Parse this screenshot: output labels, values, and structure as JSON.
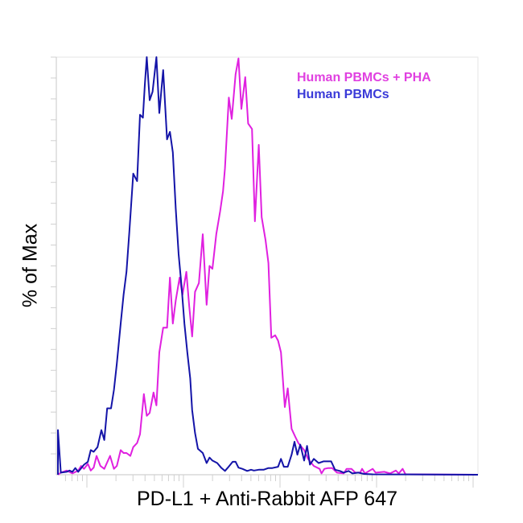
{
  "chart_data": {
    "type": "line",
    "title": "",
    "xlabel": "PD-L1 + Anti-Rabbit AFP 647",
    "ylabel": "% of Max",
    "xscale": "log",
    "xlim": [
      0.7,
      5.05
    ],
    "ylim": [
      0,
      100
    ],
    "grid": false,
    "legend_position": "top-right",
    "series": [
      {
        "name": "Human PBMCs + PHA",
        "color": "#e020e0",
        "legend_color": "#e040e0",
        "x": [
          0.7,
          0.73,
          0.79,
          0.85,
          0.91,
          0.94,
          0.97,
          1.01,
          1.04,
          1.07,
          1.1,
          1.14,
          1.18,
          1.24,
          1.28,
          1.31,
          1.35,
          1.38,
          1.41,
          1.45,
          1.48,
          1.52,
          1.55,
          1.59,
          1.62,
          1.65,
          1.69,
          1.72,
          1.75,
          1.79,
          1.83,
          1.86,
          1.89,
          1.92,
          1.96,
          1.99,
          2.03,
          2.06,
          2.09,
          2.12,
          2.16,
          2.2,
          2.24,
          2.27,
          2.3,
          2.34,
          2.38,
          2.41,
          2.43,
          2.47,
          2.5,
          2.54,
          2.57,
          2.6,
          2.64,
          2.67,
          2.71,
          2.74,
          2.78,
          2.81,
          2.85,
          2.88,
          2.91,
          2.95,
          2.98,
          3.01,
          3.05,
          3.08,
          3.12,
          3.16,
          3.19,
          3.25,
          3.29,
          3.35,
          3.41,
          3.43,
          3.46,
          3.5,
          3.54,
          3.59,
          3.66,
          3.69,
          3.74,
          3.78,
          3.83,
          3.85,
          3.88,
          3.96,
          3.99,
          4.08,
          4.14,
          4.2,
          4.23,
          4.27,
          4.3,
          5.05
        ],
        "y": [
          0,
          0.5,
          1.0,
          0.3,
          1.0,
          2.1,
          1.4,
          2.6,
          1.0,
          1.7,
          4.5,
          2.1,
          1.4,
          4.5,
          1.4,
          2.1,
          5.9,
          5.2,
          5.2,
          4.5,
          6.6,
          7.6,
          9.7,
          19.3,
          14.1,
          14.8,
          19.7,
          16.6,
          29.3,
          35.2,
          35.2,
          47.2,
          36.2,
          41.7,
          47.2,
          43.1,
          48.6,
          40.3,
          33.1,
          43.8,
          45.9,
          57.6,
          40.7,
          50.0,
          49.3,
          57.6,
          63.1,
          67.9,
          73.4,
          90.3,
          85.2,
          95.9,
          99.7,
          87.6,
          95.2,
          84.1,
          82.8,
          60.7,
          79.0,
          61.7,
          56.2,
          50.7,
          32.8,
          33.4,
          32.1,
          29.3,
          16.2,
          20.7,
          11.0,
          9.0,
          7.6,
          5.9,
          3.8,
          2.1,
          1.4,
          0.3,
          1.4,
          1.6,
          1.6,
          0.5,
          0.3,
          1.4,
          1.4,
          0.5,
          0.5,
          1.4,
          0.3,
          1.4,
          0.5,
          0.7,
          0.3,
          1.0,
          0.3,
          1.4,
          0.1,
          0
        ]
      },
      {
        "name": "Human PBMCs",
        "color": "#1414a8",
        "legend_color": "#3a3ad8",
        "x": [
          0.7,
          0.7,
          0.73,
          0.79,
          0.82,
          0.85,
          0.88,
          0.91,
          0.97,
          1.01,
          1.04,
          1.07,
          1.11,
          1.15,
          1.18,
          1.21,
          1.25,
          1.28,
          1.31,
          1.35,
          1.38,
          1.41,
          1.44,
          1.48,
          1.52,
          1.55,
          1.58,
          1.6,
          1.62,
          1.65,
          1.68,
          1.72,
          1.75,
          1.79,
          1.83,
          1.86,
          1.89,
          1.92,
          1.95,
          1.98,
          2.01,
          2.04,
          2.07,
          2.09,
          2.12,
          2.15,
          2.2,
          2.24,
          2.27,
          2.3,
          2.35,
          2.39,
          2.43,
          2.46,
          2.51,
          2.54,
          2.57,
          2.61,
          2.66,
          2.7,
          2.73,
          2.78,
          2.83,
          2.88,
          2.92,
          2.98,
          3.01,
          3.04,
          3.08,
          3.12,
          3.15,
          3.18,
          3.21,
          3.25,
          3.28,
          3.31,
          3.35,
          3.4,
          3.45,
          3.53,
          3.57,
          3.62,
          3.66,
          3.71,
          3.75,
          3.81,
          3.87,
          3.96,
          5.05
        ],
        "y": [
          0,
          10.7,
          0.5,
          0.7,
          1.0,
          0.7,
          1.6,
          0.7,
          2.4,
          3.1,
          5.9,
          5.5,
          6.6,
          10.7,
          8.3,
          15.9,
          15.9,
          20.3,
          26.6,
          36.2,
          43.1,
          48.6,
          58.3,
          72.1,
          70.3,
          86.2,
          85.5,
          93.4,
          100,
          89.7,
          91.7,
          100,
          86.6,
          96.9,
          80.3,
          82.1,
          77.2,
          63.8,
          52.8,
          45.2,
          36.2,
          29.3,
          23.1,
          15.5,
          10.0,
          6.2,
          5.2,
          2.8,
          4.1,
          3.4,
          2.8,
          1.7,
          0.9,
          1.7,
          3.1,
          3.1,
          1.7,
          1.4,
          0.9,
          1.2,
          1.0,
          1.2,
          1.2,
          1.6,
          1.6,
          1.9,
          3.8,
          1.9,
          1.9,
          4.8,
          7.9,
          4.8,
          7.2,
          3.4,
          6.9,
          2.4,
          3.8,
          2.8,
          3.2,
          3.2,
          1.2,
          0.9,
          0.5,
          0.9,
          0.3,
          0.5,
          0.2,
          0.1,
          0
        ]
      }
    ]
  }
}
